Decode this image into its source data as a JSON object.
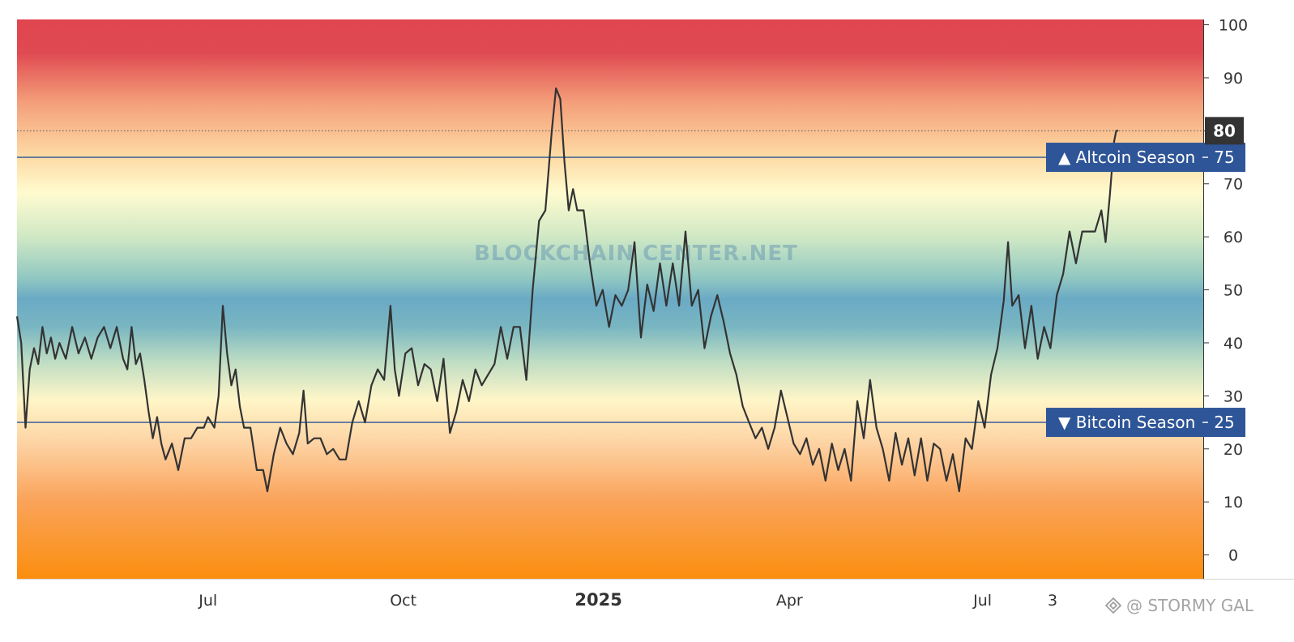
{
  "chart_data": {
    "type": "line",
    "title": "",
    "xlabel": "",
    "ylabel": "",
    "ylim": [
      -4.5,
      101
    ],
    "y_ticks": [
      "100",
      "90",
      "80",
      "70",
      "60",
      "50",
      "40",
      "30",
      "20",
      "10",
      "0"
    ],
    "x_ticks": [
      {
        "label": "Jul",
        "x": "2024-07-01",
        "bold": false
      },
      {
        "label": "Oct",
        "x": "2024-10-01",
        "bold": false
      },
      {
        "label": "2025",
        "x": "2025-01-01",
        "bold": true
      },
      {
        "label": "Apr",
        "x": "2025-04-01",
        "bold": false
      },
      {
        "label": "Jul",
        "x": "2025-07-01",
        "bold": false
      },
      {
        "label": "3",
        "x": "2025-08-03",
        "bold": false
      }
    ],
    "x_start": "2024-04-02",
    "x_end": "2025-10-13",
    "background": "vertical gradient: red at top, yellow, green, blue at 50, green, yellow, orange at bottom",
    "reference_lines": [
      {
        "label": "▲ Altcoin Season",
        "value": "75",
        "y": 75,
        "color": "#2e5597"
      },
      {
        "label": "▼ Bitcoin Season",
        "value": "25",
        "y": 25,
        "color": "#2e5597"
      }
    ],
    "current_value": {
      "label": "80",
      "y": 80
    },
    "series": [
      {
        "color": "#333333",
        "points": [
          [
            "2024-04-02",
            45
          ],
          [
            "2024-04-04",
            40
          ],
          [
            "2024-04-06",
            24
          ],
          [
            "2024-04-08",
            35
          ],
          [
            "2024-04-10",
            39
          ],
          [
            "2024-04-12",
            36
          ],
          [
            "2024-04-14",
            43
          ],
          [
            "2024-04-16",
            38
          ],
          [
            "2024-04-18",
            41
          ],
          [
            "2024-04-20",
            37
          ],
          [
            "2024-04-22",
            40
          ],
          [
            "2024-04-25",
            37
          ],
          [
            "2024-04-28",
            43
          ],
          [
            "2024-05-01",
            38
          ],
          [
            "2024-05-04",
            41
          ],
          [
            "2024-05-07",
            37
          ],
          [
            "2024-05-10",
            41
          ],
          [
            "2024-05-13",
            43
          ],
          [
            "2024-05-16",
            39
          ],
          [
            "2024-05-19",
            43
          ],
          [
            "2024-05-22",
            37
          ],
          [
            "2024-05-24",
            35
          ],
          [
            "2024-05-26",
            43
          ],
          [
            "2024-05-28",
            36
          ],
          [
            "2024-05-30",
            38
          ],
          [
            "2024-06-01",
            33
          ],
          [
            "2024-06-03",
            27
          ],
          [
            "2024-06-05",
            22
          ],
          [
            "2024-06-07",
            26
          ],
          [
            "2024-06-09",
            21
          ],
          [
            "2024-06-11",
            18
          ],
          [
            "2024-06-14",
            21
          ],
          [
            "2024-06-17",
            16
          ],
          [
            "2024-06-20",
            22
          ],
          [
            "2024-06-23",
            22
          ],
          [
            "2024-06-26",
            24
          ],
          [
            "2024-06-29",
            24
          ],
          [
            "2024-07-01",
            26
          ],
          [
            "2024-07-04",
            24
          ],
          [
            "2024-07-06",
            30
          ],
          [
            "2024-07-08",
            47
          ],
          [
            "2024-07-10",
            38
          ],
          [
            "2024-07-12",
            32
          ],
          [
            "2024-07-14",
            35
          ],
          [
            "2024-07-16",
            28
          ],
          [
            "2024-07-18",
            24
          ],
          [
            "2024-07-21",
            24
          ],
          [
            "2024-07-24",
            16
          ],
          [
            "2024-07-27",
            16
          ],
          [
            "2024-07-29",
            12
          ],
          [
            "2024-08-01",
            19
          ],
          [
            "2024-08-04",
            24
          ],
          [
            "2024-08-07",
            21
          ],
          [
            "2024-08-10",
            19
          ],
          [
            "2024-08-13",
            23
          ],
          [
            "2024-08-15",
            31
          ],
          [
            "2024-08-17",
            21
          ],
          [
            "2024-08-20",
            22
          ],
          [
            "2024-08-23",
            22
          ],
          [
            "2024-08-26",
            19
          ],
          [
            "2024-08-29",
            20
          ],
          [
            "2024-09-01",
            18
          ],
          [
            "2024-09-04",
            18
          ],
          [
            "2024-09-07",
            25
          ],
          [
            "2024-09-10",
            29
          ],
          [
            "2024-09-13",
            25
          ],
          [
            "2024-09-16",
            32
          ],
          [
            "2024-09-19",
            35
          ],
          [
            "2024-09-22",
            33
          ],
          [
            "2024-09-25",
            47
          ],
          [
            "2024-09-27",
            35
          ],
          [
            "2024-09-29",
            30
          ],
          [
            "2024-10-02",
            38
          ],
          [
            "2024-10-05",
            39
          ],
          [
            "2024-10-08",
            32
          ],
          [
            "2024-10-11",
            36
          ],
          [
            "2024-10-14",
            35
          ],
          [
            "2024-10-17",
            29
          ],
          [
            "2024-10-20",
            37
          ],
          [
            "2024-10-23",
            23
          ],
          [
            "2024-10-26",
            27
          ],
          [
            "2024-10-29",
            33
          ],
          [
            "2024-11-01",
            29
          ],
          [
            "2024-11-04",
            35
          ],
          [
            "2024-11-07",
            32
          ],
          [
            "2024-11-10",
            34
          ],
          [
            "2024-11-13",
            36
          ],
          [
            "2024-11-16",
            43
          ],
          [
            "2024-11-19",
            37
          ],
          [
            "2024-11-22",
            43
          ],
          [
            "2024-11-25",
            43
          ],
          [
            "2024-11-28",
            33
          ],
          [
            "2024-12-01",
            50
          ],
          [
            "2024-12-04",
            63
          ],
          [
            "2024-12-07",
            65
          ],
          [
            "2024-12-10",
            80
          ],
          [
            "2024-12-12",
            88
          ],
          [
            "2024-12-14",
            86
          ],
          [
            "2024-12-16",
            74
          ],
          [
            "2024-12-18",
            65
          ],
          [
            "2024-12-20",
            69
          ],
          [
            "2024-12-22",
            65
          ],
          [
            "2024-12-25",
            65
          ],
          [
            "2024-12-28",
            55
          ],
          [
            "2024-12-31",
            47
          ],
          [
            "2025-01-03",
            50
          ],
          [
            "2025-01-06",
            43
          ],
          [
            "2025-01-09",
            49
          ],
          [
            "2025-01-12",
            47
          ],
          [
            "2025-01-15",
            50
          ],
          [
            "2025-01-18",
            59
          ],
          [
            "2025-01-21",
            41
          ],
          [
            "2025-01-24",
            51
          ],
          [
            "2025-01-27",
            46
          ],
          [
            "2025-01-30",
            55
          ],
          [
            "2025-02-02",
            47
          ],
          [
            "2025-02-05",
            55
          ],
          [
            "2025-02-08",
            47
          ],
          [
            "2025-02-11",
            61
          ],
          [
            "2025-02-14",
            47
          ],
          [
            "2025-02-17",
            50
          ],
          [
            "2025-02-20",
            39
          ],
          [
            "2025-02-23",
            45
          ],
          [
            "2025-02-26",
            49
          ],
          [
            "2025-03-01",
            44
          ],
          [
            "2025-03-04",
            38
          ],
          [
            "2025-03-07",
            34
          ],
          [
            "2025-03-10",
            28
          ],
          [
            "2025-03-13",
            25
          ],
          [
            "2025-03-16",
            22
          ],
          [
            "2025-03-19",
            24
          ],
          [
            "2025-03-22",
            20
          ],
          [
            "2025-03-25",
            24
          ],
          [
            "2025-03-28",
            31
          ],
          [
            "2025-03-31",
            26
          ],
          [
            "2025-04-03",
            21
          ],
          [
            "2025-04-06",
            19
          ],
          [
            "2025-04-09",
            22
          ],
          [
            "2025-04-12",
            17
          ],
          [
            "2025-04-15",
            20
          ],
          [
            "2025-04-18",
            14
          ],
          [
            "2025-04-21",
            21
          ],
          [
            "2025-04-24",
            16
          ],
          [
            "2025-04-27",
            20
          ],
          [
            "2025-04-30",
            14
          ],
          [
            "2025-05-03",
            29
          ],
          [
            "2025-05-06",
            22
          ],
          [
            "2025-05-09",
            33
          ],
          [
            "2025-05-12",
            24
          ],
          [
            "2025-05-15",
            20
          ],
          [
            "2025-05-18",
            14
          ],
          [
            "2025-05-21",
            23
          ],
          [
            "2025-05-24",
            17
          ],
          [
            "2025-05-27",
            22
          ],
          [
            "2025-05-30",
            15
          ],
          [
            "2025-06-02",
            22
          ],
          [
            "2025-06-05",
            14
          ],
          [
            "2025-06-08",
            21
          ],
          [
            "2025-06-11",
            20
          ],
          [
            "2025-06-14",
            14
          ],
          [
            "2025-06-17",
            19
          ],
          [
            "2025-06-20",
            12
          ],
          [
            "2025-06-23",
            22
          ],
          [
            "2025-06-26",
            20
          ],
          [
            "2025-06-29",
            29
          ],
          [
            "2025-07-02",
            24
          ],
          [
            "2025-07-05",
            34
          ],
          [
            "2025-07-08",
            39
          ],
          [
            "2025-07-11",
            48
          ],
          [
            "2025-07-13",
            59
          ],
          [
            "2025-07-15",
            47
          ],
          [
            "2025-07-18",
            49
          ],
          [
            "2025-07-21",
            39
          ],
          [
            "2025-07-24",
            47
          ],
          [
            "2025-07-27",
            37
          ],
          [
            "2025-07-30",
            43
          ],
          [
            "2025-08-02",
            39
          ],
          [
            "2025-08-05",
            49
          ],
          [
            "2025-08-08",
            53
          ],
          [
            "2025-08-11",
            61
          ],
          [
            "2025-08-14",
            55
          ],
          [
            "2025-08-17",
            61
          ],
          [
            "2025-08-20",
            61
          ],
          [
            "2025-08-23",
            61
          ],
          [
            "2025-08-26",
            65
          ],
          [
            "2025-08-28",
            59
          ],
          [
            "2025-08-30",
            68
          ],
          [
            "2025-09-01",
            78
          ],
          [
            "2025-09-02",
            80
          ],
          [
            "2025-09-03",
            80
          ]
        ]
      }
    ],
    "watermark": "BLOCKCHAIN CENTER.NET",
    "credit": "@ STORMY GAL"
  }
}
